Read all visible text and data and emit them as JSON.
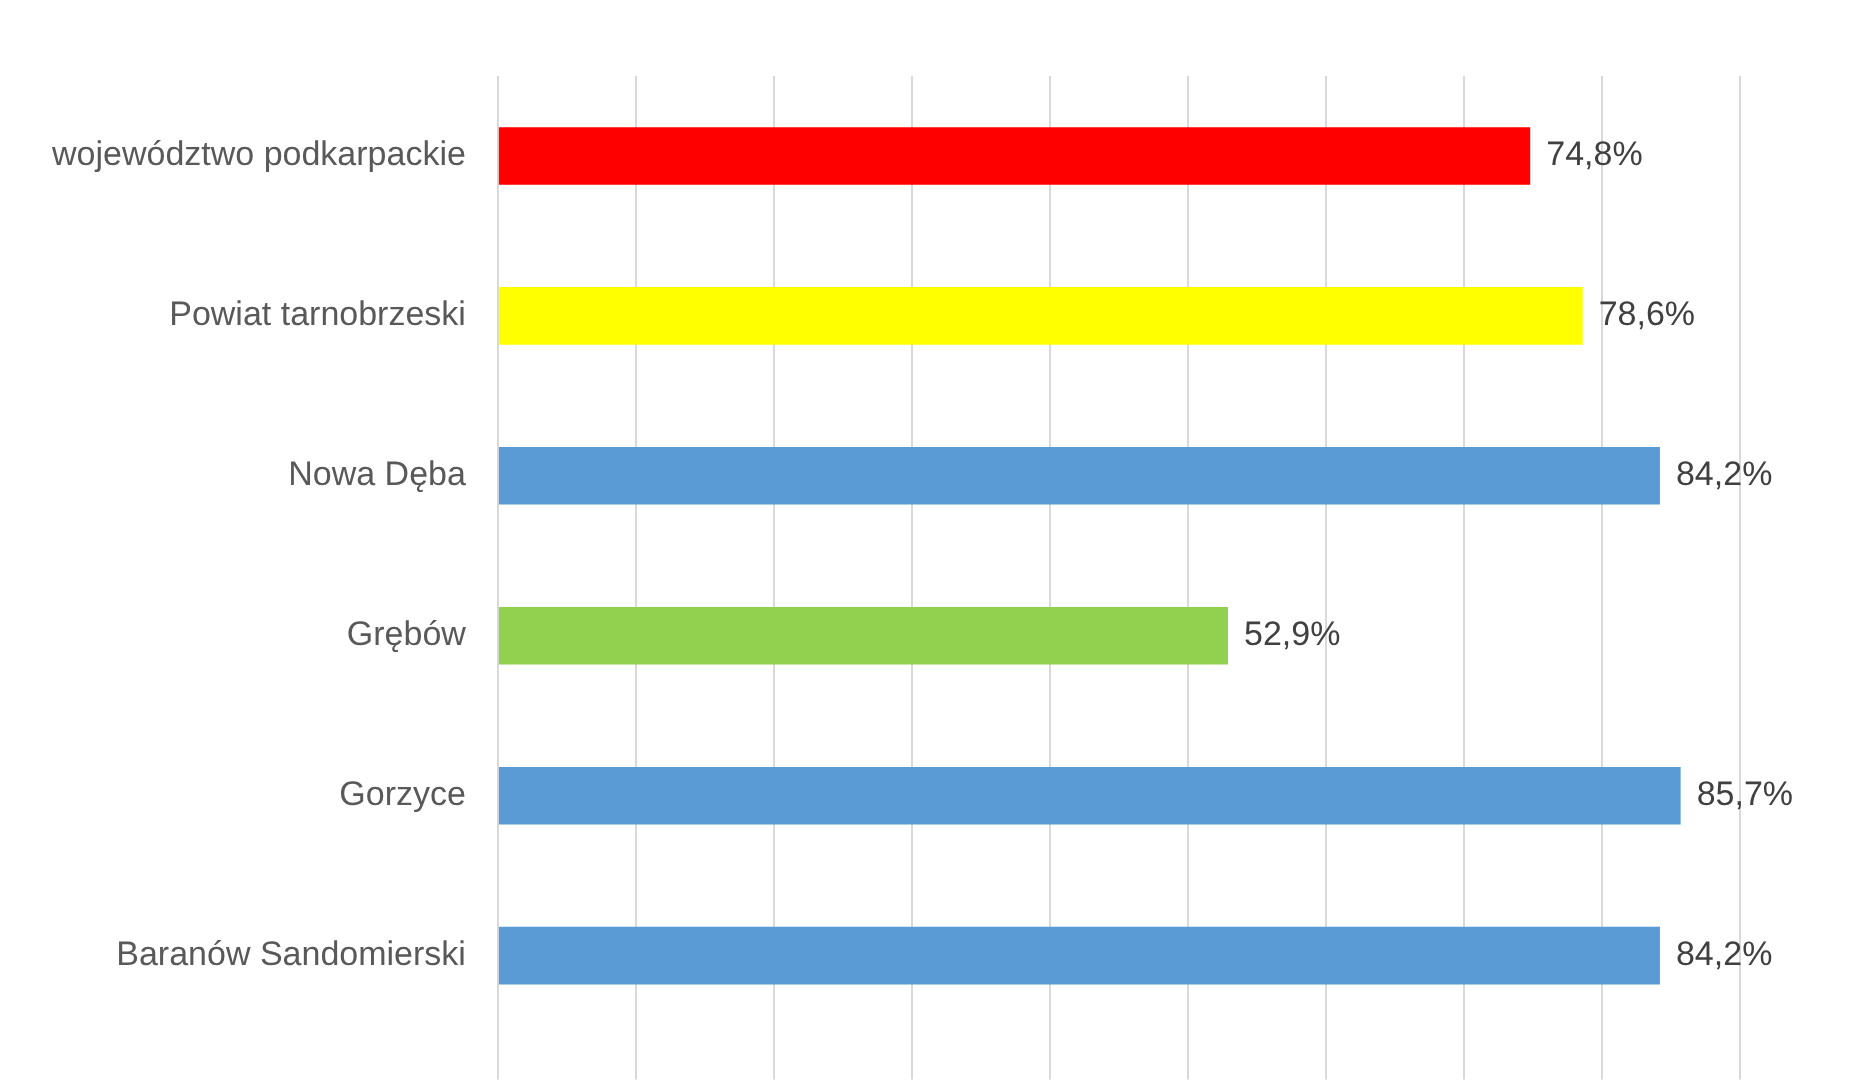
{
  "chart_data": {
    "type": "bar",
    "orientation": "horizontal",
    "categories": [
      "województwo podkarpackie",
      "Powiat tarnobrzeski",
      "Nowa Dęba",
      "Grębów",
      "Gorzyce",
      "Baranów Sandomierski"
    ],
    "values": [
      74.8,
      78.6,
      84.2,
      52.9,
      85.7,
      84.2
    ],
    "colors": [
      "#ff0000",
      "#ffff00",
      "#5b9bd5",
      "#92d050",
      "#5b9bd5",
      "#5b9bd5"
    ],
    "value_labels": [
      "74,8%",
      "78,6%",
      "84,2%",
      "52,9%",
      "85,7%",
      "84,2%"
    ],
    "xlim": [
      0,
      90
    ],
    "xticks": [
      {
        "value": 0,
        "label": null
      },
      {
        "value": 10,
        "label": null
      },
      {
        "value": 20,
        "label": null
      },
      {
        "value": 30,
        "label": null
      },
      {
        "value": 40,
        "label": null
      },
      {
        "value": 50,
        "label": null
      },
      {
        "value": 60,
        "label": null
      },
      {
        "value": 70,
        "label": null
      },
      {
        "value": 80,
        "label": null
      },
      {
        "value": 90,
        "label": null
      }
    ],
    "grid": "x",
    "tick_labels": "y",
    "legend": false
  }
}
